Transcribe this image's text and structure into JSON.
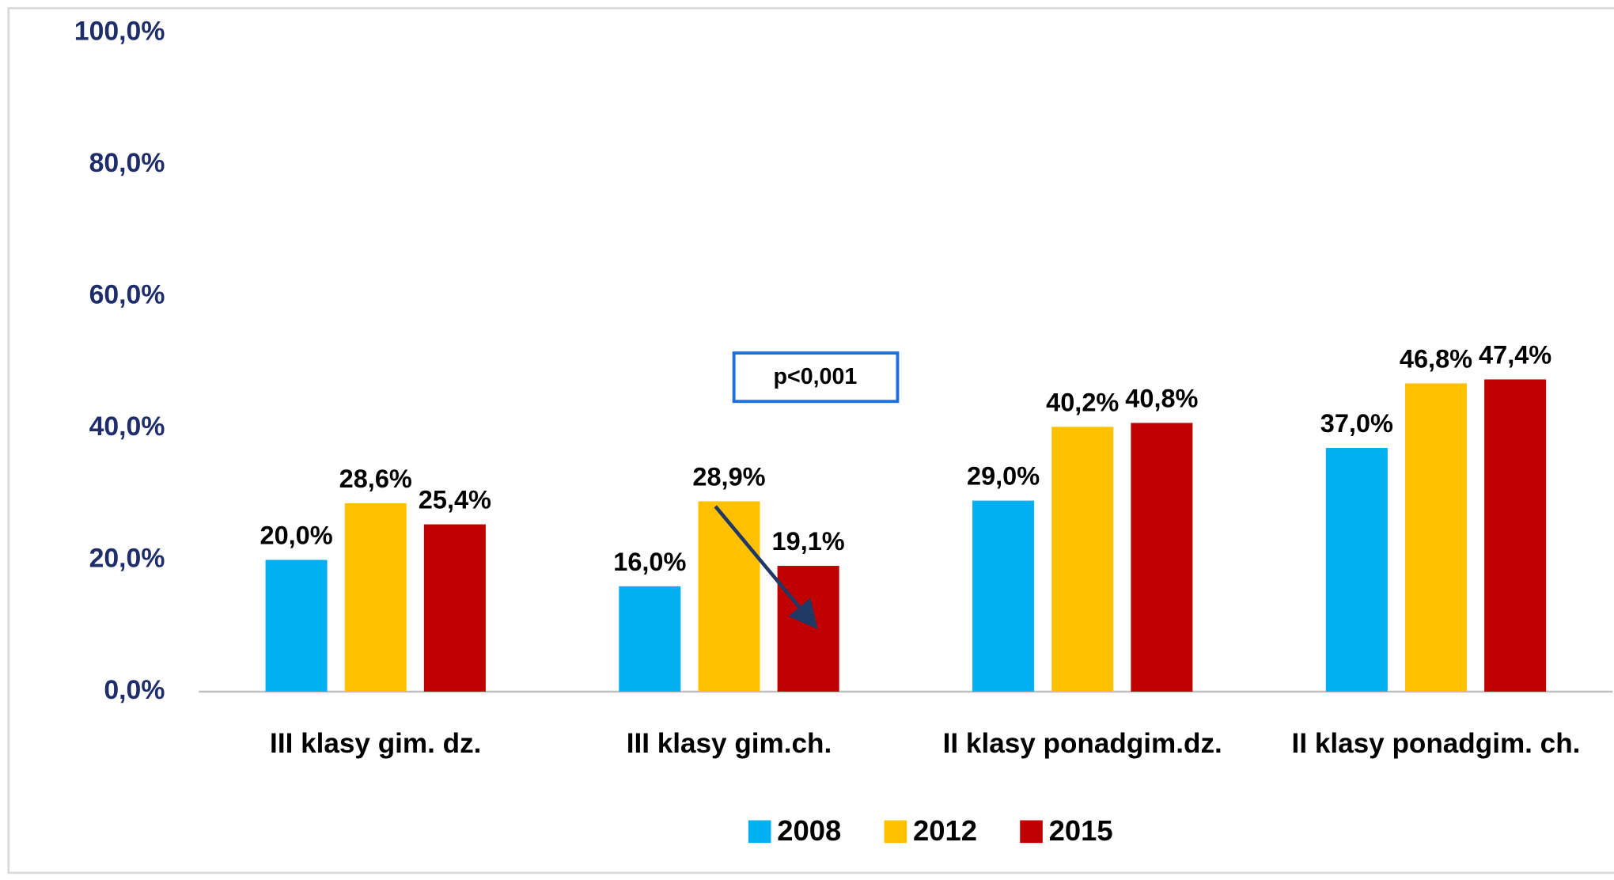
{
  "chart_data": {
    "type": "bar",
    "categories": [
      "III klasy gim. dz.",
      "III klasy gim.ch.",
      "II klasy ponadgim.dz.",
      "II klasy ponadgim. ch."
    ],
    "series": [
      {
        "name": "2008",
        "color": "#00b0f0",
        "values": [
          20.0,
          16.0,
          29.0,
          37.0
        ],
        "value_labels": [
          "20,0%",
          "16,0%",
          "29,0%",
          "37,0%"
        ]
      },
      {
        "name": "2012",
        "color": "#ffc000",
        "values": [
          28.6,
          28.9,
          40.2,
          46.8
        ],
        "value_labels": [
          "28,6%",
          "28,9%",
          "40,2%",
          "46,8%"
        ]
      },
      {
        "name": "2015",
        "color": "#c00000",
        "values": [
          25.4,
          19.1,
          40.8,
          47.4
        ],
        "value_labels": [
          "25,4%",
          "19,1%",
          "40,8%",
          "47,4%"
        ]
      }
    ],
    "ylim": [
      0,
      100
    ],
    "yticks": [
      {
        "value": 0,
        "label": "0,0%"
      },
      {
        "value": 20,
        "label": "20,0%"
      },
      {
        "value": 40,
        "label": "40,0%"
      },
      {
        "value": 60,
        "label": "60,0%"
      },
      {
        "value": 80,
        "label": "80,0%"
      },
      {
        "value": 100,
        "label": "100,0%"
      }
    ],
    "grid": false,
    "legend": "bottom",
    "annotations": [
      "p<0,001"
    ]
  }
}
